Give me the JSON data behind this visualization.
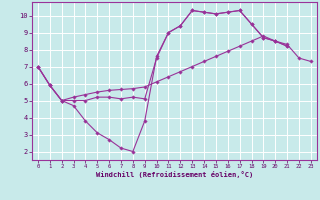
{
  "bg_color": "#c8eaea",
  "grid_color": "#ffffff",
  "line_color": "#993399",
  "marker_color": "#993399",
  "xlabel": "Windchill (Refroidissement éolien,°C)",
  "xlim": [
    -0.5,
    23.5
  ],
  "ylim": [
    1.5,
    10.8
  ],
  "xticks": [
    0,
    1,
    2,
    3,
    4,
    5,
    6,
    7,
    8,
    9,
    10,
    11,
    12,
    13,
    14,
    15,
    16,
    17,
    18,
    19,
    20,
    21,
    22,
    23
  ],
  "yticks": [
    2,
    3,
    4,
    5,
    6,
    7,
    8,
    9,
    10
  ],
  "series": [
    {
      "x": [
        0,
        1,
        2,
        3,
        4,
        5,
        6,
        7,
        8,
        9,
        10,
        11,
        12,
        13,
        14,
        15,
        16,
        17,
        18,
        19,
        20,
        21,
        22,
        23
      ],
      "y": [
        7.0,
        5.9,
        5.0,
        4.7,
        3.8,
        3.1,
        2.7,
        2.2,
        2.0,
        3.8,
        7.6,
        9.0,
        9.4,
        10.3,
        10.2,
        10.1,
        10.2,
        10.3,
        9.5,
        8.7,
        8.5,
        8.2,
        null,
        null
      ]
    },
    {
      "x": [
        0,
        1,
        2,
        3,
        4,
        5,
        6,
        7,
        8,
        9,
        10,
        11,
        12,
        13,
        14,
        15,
        16,
        17,
        18,
        19,
        20,
        21,
        22,
        23
      ],
      "y": [
        7.0,
        5.9,
        5.0,
        5.0,
        5.0,
        5.2,
        5.2,
        5.1,
        5.2,
        5.1,
        7.5,
        9.0,
        9.4,
        10.3,
        10.2,
        10.1,
        10.2,
        10.3,
        9.5,
        8.7,
        8.5,
        8.2,
        null,
        null
      ]
    },
    {
      "x": [
        0,
        1,
        2,
        3,
        4,
        5,
        6,
        7,
        8,
        9,
        10,
        11,
        12,
        13,
        14,
        15,
        16,
        17,
        18,
        19,
        20,
        21,
        22,
        23
      ],
      "y": [
        7.0,
        5.9,
        5.0,
        5.2,
        5.35,
        5.5,
        5.6,
        5.65,
        5.7,
        5.8,
        6.1,
        6.4,
        6.7,
        7.0,
        7.3,
        7.6,
        7.9,
        8.2,
        8.5,
        8.8,
        8.5,
        8.3,
        7.5,
        7.3
      ]
    }
  ]
}
